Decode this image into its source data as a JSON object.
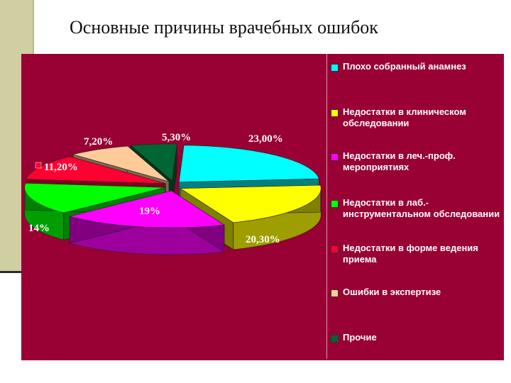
{
  "slide": {
    "title": "Основные причины врачебных ошибок"
  },
  "chart_data": {
    "type": "pie",
    "title": "",
    "values": [
      23.0,
      20.3,
      19.0,
      14.0,
      11.2,
      7.2,
      5.3
    ],
    "data_labels": [
      "23,00%",
      "20,30%",
      "19%",
      "14%",
      "11,20%",
      "7,20%",
      "5,30%"
    ],
    "labels": [
      "Плохо собранный анамнез",
      "Недостатки в клиническом обследовании",
      "Недостатки в леч.-проф. мероприятиях",
      "Недостатки в лаб.-инструментальном обследовании",
      "Недостатки в форме ведения приема",
      "Ошибки в экспертизе",
      "Прочие"
    ],
    "colors": [
      "#00ffff",
      "#ffff00",
      "#ff00ff",
      "#00ff00",
      "#ff0033",
      "#ffcc99",
      "#006633"
    ],
    "legend_position": "right",
    "style": "3d-exploded",
    "background": "#990033"
  }
}
